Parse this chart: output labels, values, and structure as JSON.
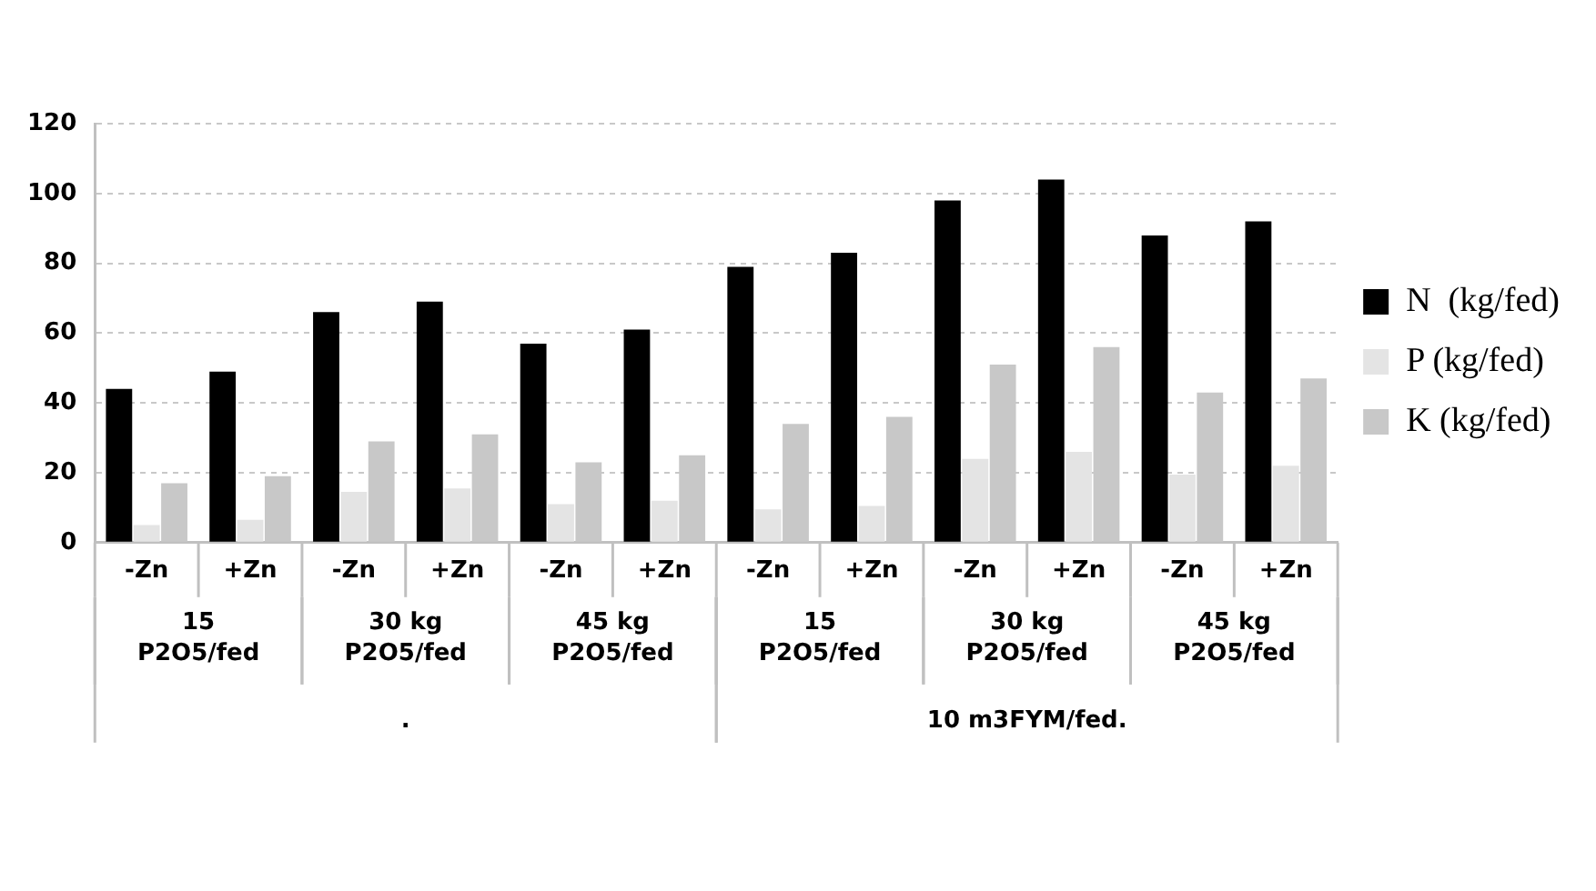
{
  "chart_data": {
    "type": "bar",
    "categories": [
      "-Zn",
      "+Zn",
      "-Zn",
      "+Zn",
      "-Zn",
      "+Zn",
      "-Zn",
      "+Zn",
      "-Zn",
      "+Zn",
      "-Zn",
      "+Zn"
    ],
    "series": [
      {
        "name": "N  (kg/fed)",
        "color": "#000000",
        "values": [
          44,
          49,
          66,
          69,
          57,
          61,
          79,
          83,
          98,
          104,
          88,
          92
        ]
      },
      {
        "name": "P (kg/fed)",
        "color": "#e4e4e4",
        "values": [
          5,
          6.5,
          14.5,
          15.5,
          11,
          12,
          9.5,
          10.5,
          24,
          26,
          19.5,
          22
        ]
      },
      {
        "name": "K (kg/fed)",
        "color": "#c8c8c8",
        "values": [
          17,
          19,
          29,
          31,
          23,
          25,
          34,
          36,
          51,
          56,
          43,
          47
        ]
      }
    ],
    "annotations": [
      "15 P2O5/fed",
      "30 kg P2O5/fed",
      "45 kg P2O5/fed",
      "15 P2O5/fed",
      "30 kg P2O5/fed",
      "45 kg P2O5/fed",
      ".",
      "10 m3FYM/fed."
    ],
    "ylim": [
      0,
      120
    ],
    "yticks": [
      0,
      20,
      40,
      60,
      80,
      100,
      120
    ],
    "grid": "y",
    "legend": "right"
  }
}
